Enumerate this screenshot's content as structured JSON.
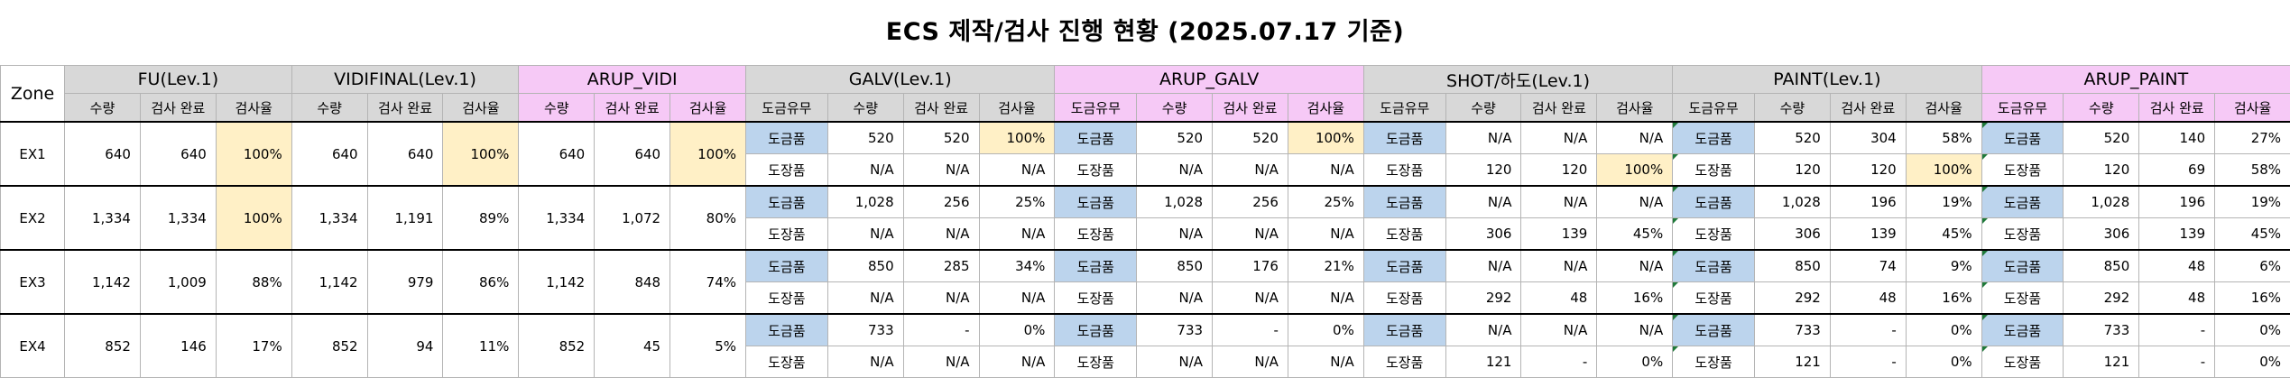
{
  "title": "ECS 제작/검사 진행 현황 (2025.07.17 기준)",
  "zone_header": "Zone",
  "groups": [
    {
      "name": "FU(Lev.1)",
      "color": "gray",
      "cols": [
        "수량",
        "검사 완료",
        "검사율"
      ]
    },
    {
      "name": "VIDIFINAL(Lev.1)",
      "color": "gray",
      "cols": [
        "수량",
        "검사 완료",
        "검사율"
      ]
    },
    {
      "name": "ARUP_VIDI",
      "color": "pink",
      "cols": [
        "수량",
        "검사 완료",
        "검사율"
      ]
    },
    {
      "name": "GALV(Lev.1)",
      "color": "gray",
      "cols": [
        "도금유무",
        "수량",
        "검사 완료",
        "검사율"
      ]
    },
    {
      "name": "ARUP_GALV",
      "color": "pink",
      "cols": [
        "도금유무",
        "수량",
        "검사 완료",
        "검사율"
      ]
    },
    {
      "name": "SHOT/하도(Lev.1)",
      "color": "gray",
      "cols": [
        "도금유무",
        "수량",
        "검사 완료",
        "검사율"
      ]
    },
    {
      "name": "PAINT(Lev.1)",
      "color": "gray",
      "cols": [
        "도금유무",
        "수량",
        "검사 완료",
        "검사율"
      ]
    },
    {
      "name": "ARUP_PAINT",
      "color": "pink",
      "cols": [
        "도금유무",
        "수량",
        "검사 완료",
        "검사율"
      ]
    }
  ],
  "highlight_colors": {
    "gray": "#d8d8d8",
    "pink": "#f6c9f6",
    "blue": "#bcd4ed",
    "yellow": "#fff0c6"
  },
  "zones": [
    {
      "zone": "EX1",
      "fu": [
        "640",
        "640",
        "100%"
      ],
      "fu_hl": true,
      "vidi": [
        "640",
        "640",
        "100%"
      ],
      "vidi_hl": true,
      "arup_vidi": [
        "640",
        "640",
        "100%"
      ],
      "arup_vidi_hl": true,
      "rows": [
        {
          "galv": [
            "도금품",
            "520",
            "520",
            "100%"
          ],
          "galv_hl": true,
          "arup_galv": [
            "도금품",
            "520",
            "520",
            "100%"
          ],
          "arup_galv_hl": true,
          "shot": [
            "도금품",
            "N/A",
            "N/A",
            "N/A"
          ],
          "shot_hl": false,
          "paint": [
            "도금품",
            "520",
            "304",
            "58%"
          ],
          "paint_hl": false,
          "arup_paint": [
            "도금품",
            "520",
            "140",
            "27%"
          ],
          "arup_paint_hl": false
        },
        {
          "galv": [
            "도장품",
            "N/A",
            "N/A",
            "N/A"
          ],
          "galv_hl": false,
          "arup_galv": [
            "도장품",
            "N/A",
            "N/A",
            "N/A"
          ],
          "arup_galv_hl": false,
          "shot": [
            "도장품",
            "120",
            "120",
            "100%"
          ],
          "shot_hl": true,
          "paint": [
            "도장품",
            "120",
            "120",
            "100%"
          ],
          "paint_hl": true,
          "arup_paint": [
            "도장품",
            "120",
            "69",
            "58%"
          ],
          "arup_paint_hl": false
        }
      ]
    },
    {
      "zone": "EX2",
      "fu": [
        "1,334",
        "1,334",
        "100%"
      ],
      "fu_hl": true,
      "vidi": [
        "1,334",
        "1,191",
        "89%"
      ],
      "vidi_hl": false,
      "arup_vidi": [
        "1,334",
        "1,072",
        "80%"
      ],
      "arup_vidi_hl": false,
      "rows": [
        {
          "galv": [
            "도금품",
            "1,028",
            "256",
            "25%"
          ],
          "galv_hl": false,
          "arup_galv": [
            "도금품",
            "1,028",
            "256",
            "25%"
          ],
          "arup_galv_hl": false,
          "shot": [
            "도금품",
            "N/A",
            "N/A",
            "N/A"
          ],
          "shot_hl": false,
          "paint": [
            "도금품",
            "1,028",
            "196",
            "19%"
          ],
          "paint_hl": false,
          "arup_paint": [
            "도금품",
            "1,028",
            "196",
            "19%"
          ],
          "arup_paint_hl": false
        },
        {
          "galv": [
            "도장품",
            "N/A",
            "N/A",
            "N/A"
          ],
          "galv_hl": false,
          "arup_galv": [
            "도장품",
            "N/A",
            "N/A",
            "N/A"
          ],
          "arup_galv_hl": false,
          "shot": [
            "도장품",
            "306",
            "139",
            "45%"
          ],
          "shot_hl": false,
          "paint": [
            "도장품",
            "306",
            "139",
            "45%"
          ],
          "paint_hl": false,
          "arup_paint": [
            "도장품",
            "306",
            "139",
            "45%"
          ],
          "arup_paint_hl": false
        }
      ]
    },
    {
      "zone": "EX3",
      "fu": [
        "1,142",
        "1,009",
        "88%"
      ],
      "fu_hl": false,
      "vidi": [
        "1,142",
        "979",
        "86%"
      ],
      "vidi_hl": false,
      "arup_vidi": [
        "1,142",
        "848",
        "74%"
      ],
      "arup_vidi_hl": false,
      "rows": [
        {
          "galv": [
            "도금품",
            "850",
            "285",
            "34%"
          ],
          "galv_hl": false,
          "arup_galv": [
            "도금품",
            "850",
            "176",
            "21%"
          ],
          "arup_galv_hl": false,
          "shot": [
            "도금품",
            "N/A",
            "N/A",
            "N/A"
          ],
          "shot_hl": false,
          "paint": [
            "도금품",
            "850",
            "74",
            "9%"
          ],
          "paint_hl": false,
          "arup_paint": [
            "도금품",
            "850",
            "48",
            "6%"
          ],
          "arup_paint_hl": false
        },
        {
          "galv": [
            "도장품",
            "N/A",
            "N/A",
            "N/A"
          ],
          "galv_hl": false,
          "arup_galv": [
            "도장품",
            "N/A",
            "N/A",
            "N/A"
          ],
          "arup_galv_hl": false,
          "shot": [
            "도장품",
            "292",
            "48",
            "16%"
          ],
          "shot_hl": false,
          "paint": [
            "도장품",
            "292",
            "48",
            "16%"
          ],
          "paint_hl": false,
          "arup_paint": [
            "도장품",
            "292",
            "48",
            "16%"
          ],
          "arup_paint_hl": false
        }
      ]
    },
    {
      "zone": "EX4",
      "fu": [
        "852",
        "146",
        "17%"
      ],
      "fu_hl": false,
      "vidi": [
        "852",
        "94",
        "11%"
      ],
      "vidi_hl": false,
      "arup_vidi": [
        "852",
        "45",
        "5%"
      ],
      "arup_vidi_hl": false,
      "rows": [
        {
          "galv": [
            "도금품",
            "733",
            "-",
            "0%"
          ],
          "galv_hl": false,
          "arup_galv": [
            "도금품",
            "733",
            "-",
            "0%"
          ],
          "arup_galv_hl": false,
          "shot": [
            "도금품",
            "N/A",
            "N/A",
            "N/A"
          ],
          "shot_hl": false,
          "paint": [
            "도금품",
            "733",
            "-",
            "0%"
          ],
          "paint_hl": false,
          "arup_paint": [
            "도금품",
            "733",
            "-",
            "0%"
          ],
          "arup_paint_hl": false
        },
        {
          "galv": [
            "도장품",
            "N/A",
            "N/A",
            "N/A"
          ],
          "galv_hl": false,
          "arup_galv": [
            "도장품",
            "N/A",
            "N/A",
            "N/A"
          ],
          "arup_galv_hl": false,
          "shot": [
            "도장품",
            "121",
            "-",
            "0%"
          ],
          "shot_hl": false,
          "paint": [
            "도장품",
            "121",
            "-",
            "0%"
          ],
          "paint_hl": false,
          "arup_paint": [
            "도장품",
            "121",
            "-",
            "0%"
          ],
          "arup_paint_hl": false
        }
      ]
    }
  ]
}
